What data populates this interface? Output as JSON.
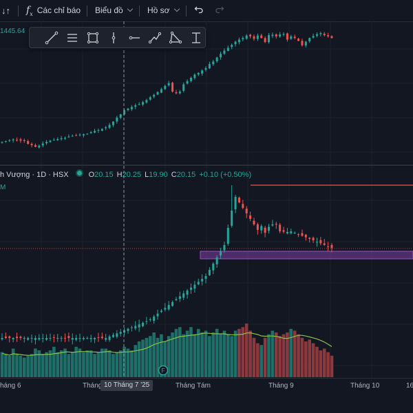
{
  "toolbar": {
    "interval_icon_label": "↓↑",
    "indicators_label": "Các chỉ báo",
    "chart_type_label": "Biểu đồ",
    "profile_label": "Hồ sơ"
  },
  "upper_pane": {
    "price_label": "1445.64"
  },
  "lower_pane": {
    "symbol": "h Vượng · 1D · HSX",
    "ohlc": {
      "o_key": "O",
      "o_val": "20.15",
      "h_key": "H",
      "h_val": "20.25",
      "l_key": "L",
      "l_val": "19.90",
      "c_key": "C",
      "c_val": "20.15",
      "change": "+0.10 (+0.50%)"
    },
    "m_label": "M",
    "earnings_marker": "F"
  },
  "time_axis": {
    "labels": [
      "háng 6",
      "Tháng",
      "Tháng Tám",
      "Tháng 9",
      "Tháng 10",
      "16"
    ],
    "crosshair_date": "10 Tháng 7 '25"
  },
  "drawing_tools": [
    "trend-line",
    "parallel-channel",
    "rectangle",
    "vertical-line",
    "horizontal-ray",
    "path",
    "triangle",
    "price-range"
  ],
  "colors": {
    "up": "#26a69a",
    "down": "#ef5350",
    "background": "#131722",
    "zone": "#7e3fa0"
  },
  "chart_data": [
    {
      "type": "candlestick",
      "series": "index (upper pane)",
      "price_label": "1445.64",
      "close": [
        1180,
        1182,
        1184,
        1186,
        1185,
        1183,
        1182,
        1175,
        1172,
        1168,
        1171,
        1176,
        1180,
        1183,
        1185,
        1187,
        1189,
        1190,
        1193,
        1195,
        1196,
        1198,
        1199,
        1200,
        1204,
        1207,
        1209,
        1212,
        1216,
        1222,
        1230,
        1240,
        1248,
        1258,
        1262,
        1266,
        1270,
        1273,
        1278,
        1283,
        1290,
        1296,
        1303,
        1310,
        1318,
        1325,
        1304,
        1300,
        1304,
        1322,
        1330,
        1338,
        1346,
        1350,
        1356,
        1362,
        1372,
        1378,
        1388,
        1397,
        1405,
        1412,
        1419,
        1427,
        1432,
        1436,
        1442,
        1440,
        1434,
        1442,
        1436,
        1426,
        1443,
        1444,
        1440,
        1445,
        1446,
        1432,
        1440,
        1436,
        1429,
        1418,
        1427,
        1436,
        1441,
        1445,
        1448,
        1443,
        1440,
        1436
      ]
    },
    {
      "type": "candlestick",
      "series": "h Vượng · 1D · HSX",
      "last": {
        "open": 20.15,
        "high": 20.25,
        "low": 19.9,
        "close": 20.15,
        "change": 0.1,
        "change_pct": 0.5
      },
      "resistance_level": "line at the high of the spike candle",
      "support_zone": "horizontal band just below the last close",
      "x_labels": [
        "háng 6",
        "Tháng",
        "Tháng Tám",
        "Tháng 9",
        "Tháng 10",
        "16"
      ]
    },
    {
      "type": "bar",
      "series": "volume",
      "values": [
        14,
        13,
        12,
        16,
        13,
        12,
        11,
        12,
        13,
        16,
        15,
        13,
        14,
        15,
        17,
        14,
        15,
        16,
        13,
        14,
        17,
        16,
        14,
        15,
        15,
        13,
        14,
        16,
        16,
        15,
        13,
        14,
        15,
        17,
        16,
        15,
        18,
        20,
        21,
        22,
        23,
        25,
        22,
        24,
        20,
        23,
        25,
        27,
        28,
        24,
        26,
        28,
        24,
        27,
        25,
        26,
        23,
        25,
        27,
        24,
        26,
        24,
        23,
        26,
        27,
        28,
        30,
        26,
        22,
        19,
        18,
        22,
        24,
        26,
        25,
        23,
        24,
        25,
        27,
        26,
        24,
        22,
        20,
        21,
        19,
        17,
        15,
        16,
        14,
        12
      ],
      "ma_label": "M"
    }
  ]
}
